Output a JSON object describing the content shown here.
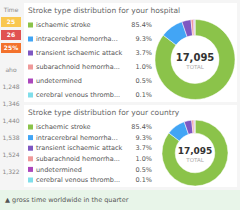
{
  "chart_data": [
    {
      "type": "donut",
      "title": "Stroke type distribution for your hospital",
      "categories": [
        "ischaemic stroke",
        "intracerebral hemorrha...",
        "transient ischaemic attack",
        "subarachnoid hemorrha...",
        "undetermined",
        "cerebral venous thromb..."
      ],
      "values": [
        85.4,
        9.3,
        3.7,
        1.0,
        0.5,
        0.1
      ],
      "value_labels": [
        "85.4%",
        "9.3%",
        "3.7%",
        "1.0%",
        "0.5%",
        "0.1%"
      ],
      "colors": [
        "#8bc34a",
        "#42a5f5",
        "#7e57c2",
        "#ef9a9a",
        "#ab47bc",
        "#80deea"
      ],
      "annotations": [
        "17,095",
        "TOTAL"
      ]
    },
    {
      "type": "donut",
      "title": "Stroke type distribution for your country",
      "categories": [
        "ischaemic stroke",
        "intracerebral hemorrha...",
        "transient ischaemic attack",
        "subarachnoid hemorrha...",
        "undetermined",
        "cerebral venous thromb..."
      ],
      "values": [
        85.4,
        9.3,
        3.7,
        1.0,
        0.5,
        0.1
      ],
      "value_labels": [
        "85.4%",
        "9.3%",
        "3.7%",
        "1.0%",
        "0.5%",
        "0.1%"
      ],
      "colors": [
        "#8bc34a",
        "#42a5f5",
        "#7e57c2",
        "#ef9a9a",
        "#ab47bc",
        "#80deea"
      ],
      "annotations": [
        "17,095",
        "TOTAL"
      ]
    }
  ],
  "sidebar": {
    "title": "Time",
    "labels": [
      "25",
      "26",
      "25%"
    ],
    "colors": [
      "#f9c74f",
      "#e05252",
      "#f3722c"
    ],
    "annotations": [
      "aho",
      "1,248",
      "1,346",
      "1,440",
      "1,538",
      "1,524",
      "1,322"
    ]
  },
  "footer": "▲ gross time worldwide in the quarter"
}
